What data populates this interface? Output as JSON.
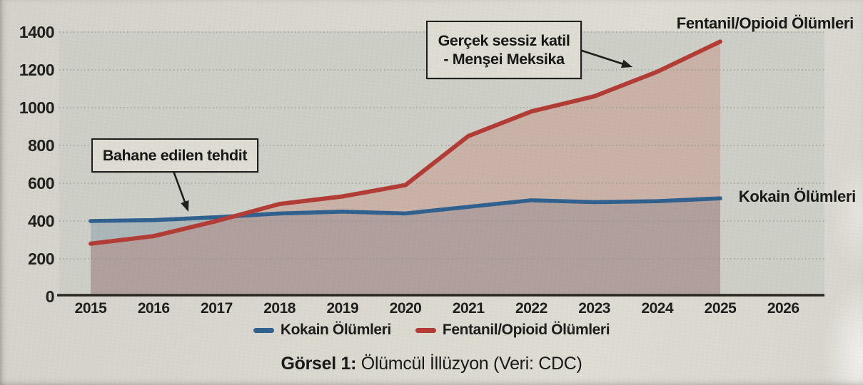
{
  "figure": {
    "caption": {
      "prefix": "Görsel 1:",
      "text": " Ölümcül İllüzyon (Veri: CDC)"
    }
  },
  "annotations": {
    "excuse": {
      "text": "Bahane edilen tehdit"
    },
    "silent_killer": {
      "line1": "Gerçek sessiz katil",
      "line2": "- Menşei Meksika"
    }
  },
  "series_labels": {
    "fentanyl": "Fentanil/Opioid Ölümleri",
    "cocaine": "Kokain Ölümleri"
  },
  "legend": {
    "items": [
      {
        "label": "Kokain Ölümleri",
        "color": "#2d5f8e"
      },
      {
        "label": "Fentanil/Opioid Ölümleri",
        "color": "#b23a33"
      }
    ]
  },
  "colors": {
    "paper": "#d9d7ce",
    "plot_background": "#cdcfc7",
    "gridline": "#8d8d84",
    "axis": "#26261f",
    "cocaine_line": "#2d5f8e",
    "fentanyl_line": "#b23a33",
    "cocaine_fill": "rgba(72,112,145,0.26)",
    "fentanyl_fill": "rgba(190,100,82,0.28)"
  },
  "chart_data": {
    "type": "line",
    "title": "Ölümcül İllüzyon (Veri: CDC)",
    "xlabel": "",
    "ylabel": "",
    "x": [
      2015,
      2016,
      2017,
      2018,
      2019,
      2020,
      2021,
      2022,
      2023,
      2024,
      2025
    ],
    "x_axis_tick_labels": [
      "2015",
      "2016",
      "2017",
      "2018",
      "2019",
      "2020",
      "2021",
      "2022",
      "2023",
      "2024",
      "2025",
      "2026"
    ],
    "y_tick_labels": [
      "0",
      "200",
      "400",
      "600",
      "800",
      "1000",
      "1200",
      "1400"
    ],
    "ylim": [
      0,
      1400
    ],
    "grid": "horizontal-dotted",
    "area_fill": true,
    "legend_position": "bottom",
    "series": [
      {
        "name": "Kokain Ölümleri",
        "color": "#2d5f8e",
        "values": [
          400,
          405,
          420,
          440,
          450,
          440,
          475,
          510,
          500,
          505,
          520
        ]
      },
      {
        "name": "Fentanil/Opioid Ölümleri",
        "color": "#b23a33",
        "values": [
          280,
          320,
          400,
          490,
          530,
          590,
          850,
          980,
          1060,
          1190,
          1350
        ]
      }
    ],
    "annotations": [
      {
        "text": "Bahane edilen tehdit",
        "points_to_series": "Kokain Ölümleri",
        "points_to_x": 2016.6
      },
      {
        "text": "Gerçek sessiz katil - Menşei Meksika",
        "points_to_series": "Fentanil/Opioid Ölümleri",
        "points_to_x": 2023.6
      }
    ]
  }
}
